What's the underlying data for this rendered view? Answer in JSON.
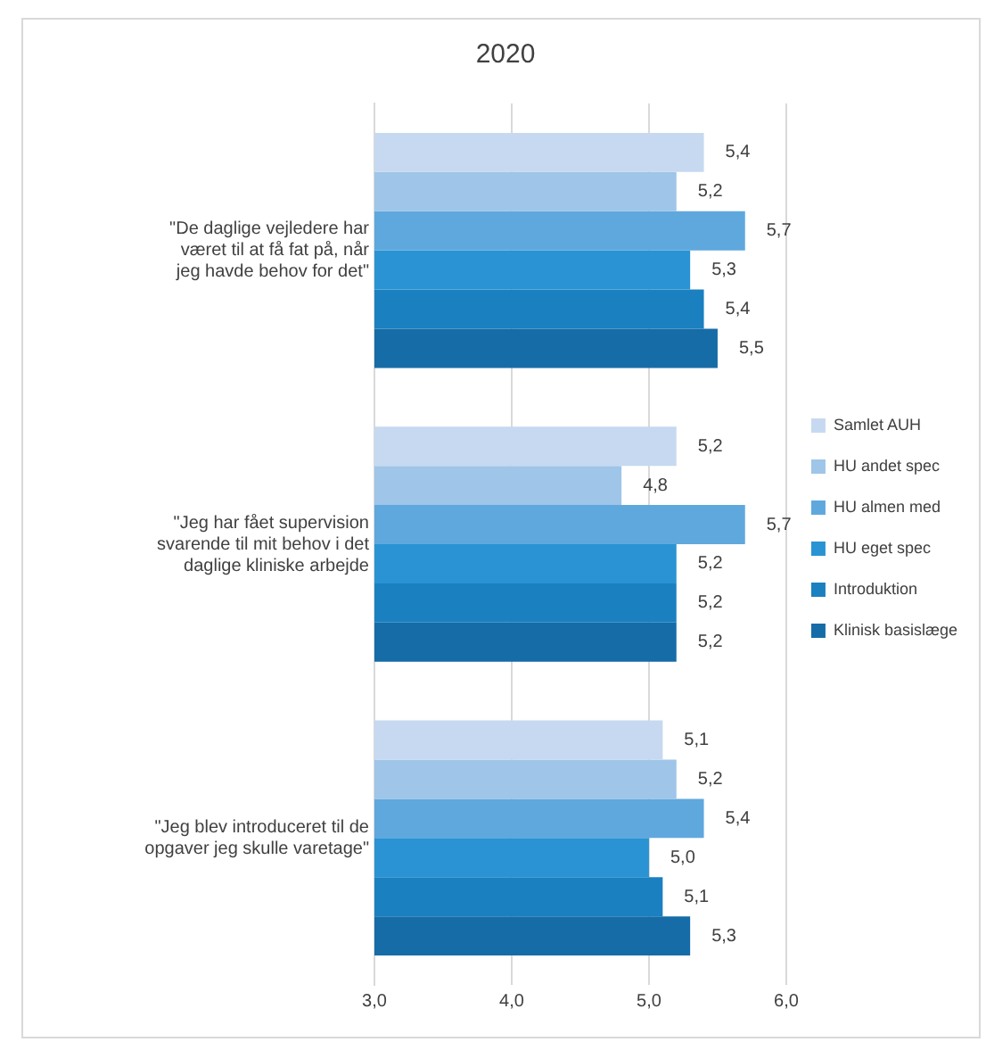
{
  "chart_data": {
    "type": "bar",
    "orientation": "horizontal",
    "title": "2020",
    "categories": [
      "\"De daglige vejledere har været til at få fat på, når jeg havde behov for det\"",
      "\"Jeg har fået supervision svarende til mit behov i det daglige kliniske arbejde",
      "\"Jeg blev introduceret til de opgaver jeg skulle varetage\""
    ],
    "series": [
      {
        "name": "Samlet AUH",
        "color": "#c6d9f0",
        "values": [
          5.4,
          5.2,
          5.1
        ],
        "value_labels": [
          "5,4",
          "5,2",
          "5,1"
        ]
      },
      {
        "name": "HU andet spec",
        "color": "#9fc5e8",
        "values": [
          5.2,
          4.8,
          5.2
        ],
        "value_labels": [
          "5,2",
          "4,8",
          "5,2"
        ]
      },
      {
        "name": "HU almen med",
        "color": "#5fa8de",
        "values": [
          5.7,
          5.7,
          5.4
        ],
        "value_labels": [
          "5,7",
          "5,7",
          "5,4"
        ]
      },
      {
        "name": "HU eget spec",
        "color": "#2993d3",
        "values": [
          5.3,
          5.2,
          5.0
        ],
        "value_labels": [
          "5,3",
          "5,2",
          "5,0"
        ]
      },
      {
        "name": "Introduktion",
        "color": "#1b80c0",
        "values": [
          5.4,
          5.2,
          5.1
        ],
        "value_labels": [
          "5,4",
          "5,2",
          "5,1"
        ]
      },
      {
        "name": "Klinisk basislæge",
        "color": "#166ca6",
        "values": [
          5.5,
          5.2,
          5.3
        ],
        "value_labels": [
          "5,5",
          "5,2",
          "5,3"
        ]
      }
    ],
    "xlim": [
      3,
      6
    ],
    "xticks": [
      {
        "value": 3,
        "label": "3,0"
      },
      {
        "value": 4,
        "label": "4,0"
      },
      {
        "value": 5,
        "label": "5,0"
      },
      {
        "value": 6,
        "label": "6,0"
      }
    ],
    "grid": "x",
    "legend": "right"
  }
}
